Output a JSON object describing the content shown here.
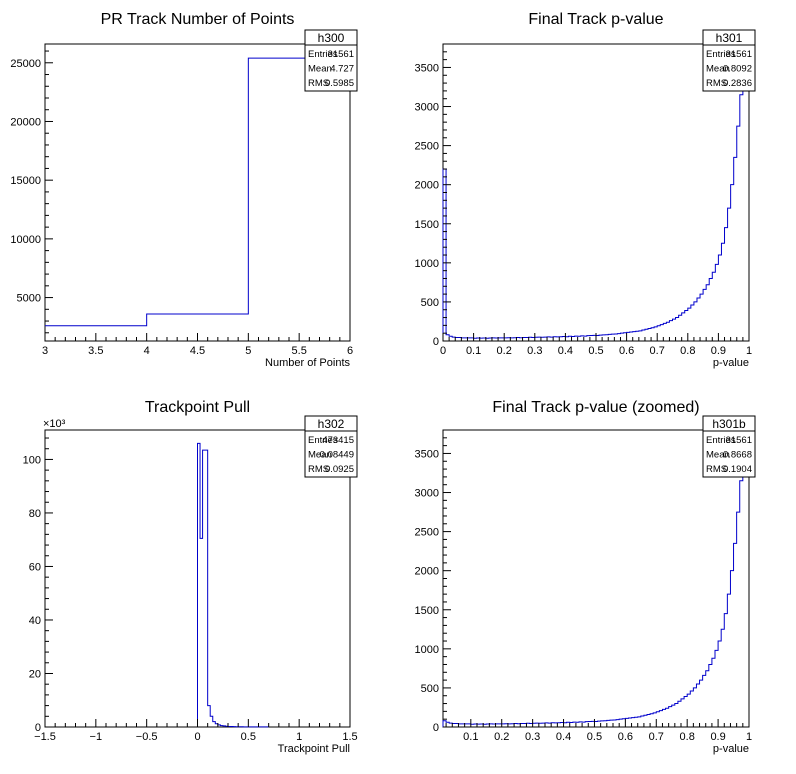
{
  "chart_data": [
    {
      "id": "h300",
      "type": "histogram",
      "title": "PR Track Number of Points",
      "xlabel": "Number of Points",
      "ylabel": "",
      "xlim": [
        3,
        6
      ],
      "ylim": [
        1300,
        26600
      ],
      "x_ticks": [
        3,
        3.5,
        4,
        4.5,
        5,
        5.5,
        6
      ],
      "x_tick_labels": [
        "3",
        "3.5",
        "4",
        "4.5",
        "5",
        "5.5",
        "6"
      ],
      "y_ticks": [
        5000,
        10000,
        15000,
        20000,
        25000
      ],
      "y_tick_labels": [
        "5000",
        "10000",
        "15000",
        "20000",
        "25000"
      ],
      "bin_edges": [
        3,
        4,
        5,
        6
      ],
      "values": [
        2600,
        3600,
        25400
      ],
      "stats": {
        "name": "h300",
        "rows": [
          {
            "label": "Entries",
            "value": "31561"
          },
          {
            "label": "Mean",
            "value": "4.727"
          },
          {
            "label": "RMS",
            "value": "0.5985"
          }
        ]
      }
    },
    {
      "id": "h301",
      "type": "histogram",
      "title": "Final Track p-value",
      "xlabel": "p-value",
      "ylabel": "",
      "xlim": [
        0,
        1
      ],
      "ylim": [
        0,
        3800
      ],
      "x_ticks": [
        0,
        0.1,
        0.2,
        0.3,
        0.4,
        0.5,
        0.6,
        0.7,
        0.8,
        0.9,
        1
      ],
      "x_tick_labels": [
        "0",
        "0.1",
        "0.2",
        "0.3",
        "0.4",
        "0.5",
        "0.6",
        "0.7",
        "0.8",
        "0.9",
        "1"
      ],
      "y_ticks": [
        0,
        500,
        1000,
        1500,
        2000,
        2500,
        3000,
        3500
      ],
      "y_tick_labels": [
        "0",
        "500",
        "1000",
        "1500",
        "2000",
        "2500",
        "3000",
        "3500"
      ],
      "bin_width": 0.01,
      "values": [
        2200,
        80,
        60,
        50,
        45,
        45,
        40,
        40,
        40,
        40,
        35,
        38,
        36,
        38,
        35,
        38,
        40,
        38,
        40,
        40,
        40,
        42,
        40,
        42,
        45,
        42,
        45,
        45,
        48,
        45,
        48,
        50,
        48,
        50,
        52,
        50,
        55,
        52,
        55,
        58,
        55,
        60,
        58,
        62,
        60,
        65,
        62,
        68,
        70,
        72,
        70,
        75,
        78,
        80,
        85,
        88,
        90,
        95,
        100,
        105,
        110,
        115,
        120,
        125,
        130,
        140,
        150,
        160,
        170,
        180,
        195,
        210,
        225,
        240,
        260,
        280,
        300,
        330,
        360,
        390,
        420,
        460,
        500,
        550,
        600,
        660,
        720,
        800,
        880,
        980,
        1100,
        1250,
        1450,
        1700,
        2000,
        2350,
        2750,
        3150,
        3250,
        3300
      ],
      "stats": {
        "name": "h301",
        "rows": [
          {
            "label": "Entries",
            "value": "31561"
          },
          {
            "label": "Mean",
            "value": "0.8092"
          },
          {
            "label": "RMS",
            "value": "0.2836"
          }
        ]
      }
    },
    {
      "id": "h302",
      "type": "histogram",
      "title": "Trackpoint Pull",
      "xlabel": "Trackpoint Pull",
      "ylabel": "",
      "y_multiplier_label": "×10³",
      "xlim": [
        -1.5,
        1.5
      ],
      "ylim": [
        0,
        111
      ],
      "x_ticks": [
        -1.5,
        -1,
        -0.5,
        0,
        0.5,
        1,
        1.5
      ],
      "x_tick_labels": [
        "−1.5",
        "−1",
        "−0.5",
        "0",
        "0.5",
        "1",
        "1.5"
      ],
      "y_ticks": [
        0,
        20,
        40,
        60,
        80,
        100
      ],
      "y_tick_labels": [
        "0",
        "20",
        "40",
        "60",
        "80",
        "100"
      ],
      "bin_start": 0.0,
      "bin_width": 0.025,
      "values": [
        106,
        70.5,
        103.5,
        103.5,
        8,
        4,
        2,
        1.2,
        0.8,
        0.5,
        0.4,
        0.3,
        0.2,
        0.2,
        0.15,
        0.1,
        0.1,
        0.1,
        0.05,
        0.05,
        0.05,
        0.05,
        0.05,
        0.05,
        0.05,
        0.05,
        0.05,
        0.05
      ],
      "stats": {
        "name": "h302",
        "rows": [
          {
            "label": "Entries",
            "value": "473415"
          },
          {
            "label": "Mean",
            "value": "0.08449"
          },
          {
            "label": "RMS",
            "value": "0.0925"
          }
        ]
      }
    },
    {
      "id": "h301b",
      "type": "histogram",
      "title": "Final Track p-value (zoomed)",
      "xlabel": "p-value",
      "ylabel": "",
      "xlim": [
        0.01,
        1
      ],
      "ylim": [
        0,
        3800
      ],
      "x_ticks": [
        0.1,
        0.2,
        0.3,
        0.4,
        0.5,
        0.6,
        0.7,
        0.8,
        0.9,
        1
      ],
      "x_tick_labels": [
        "0.1",
        "0.2",
        "0.3",
        "0.4",
        "0.5",
        "0.6",
        "0.7",
        "0.8",
        "0.9",
        "1"
      ],
      "y_ticks": [
        0,
        500,
        1000,
        1500,
        2000,
        2500,
        3000,
        3500
      ],
      "y_tick_labels": [
        "0",
        "500",
        "1000",
        "1500",
        "2000",
        "2500",
        "3000",
        "3500"
      ],
      "bin_start": 0.01,
      "bin_width": 0.01,
      "values": [
        80,
        60,
        50,
        45,
        45,
        40,
        40,
        40,
        40,
        35,
        38,
        36,
        38,
        35,
        38,
        40,
        38,
        40,
        40,
        40,
        42,
        40,
        42,
        45,
        42,
        45,
        45,
        48,
        45,
        48,
        50,
        48,
        50,
        52,
        50,
        55,
        52,
        55,
        58,
        55,
        60,
        58,
        62,
        60,
        65,
        62,
        68,
        70,
        72,
        70,
        75,
        78,
        80,
        85,
        88,
        90,
        95,
        100,
        105,
        110,
        115,
        120,
        125,
        130,
        140,
        150,
        160,
        170,
        180,
        195,
        210,
        225,
        240,
        260,
        280,
        300,
        330,
        360,
        390,
        420,
        460,
        500,
        550,
        600,
        660,
        720,
        800,
        880,
        980,
        1100,
        1250,
        1450,
        1700,
        2000,
        2350,
        2750,
        3150,
        3250,
        3300
      ],
      "stats": {
        "name": "h301b",
        "rows": [
          {
            "label": "Entries",
            "value": "31561"
          },
          {
            "label": "Mean",
            "value": "0.8668"
          },
          {
            "label": "RMS",
            "value": "0.1904"
          }
        ]
      }
    }
  ],
  "colors": {
    "line": "#0000cc",
    "axis": "#000000"
  }
}
